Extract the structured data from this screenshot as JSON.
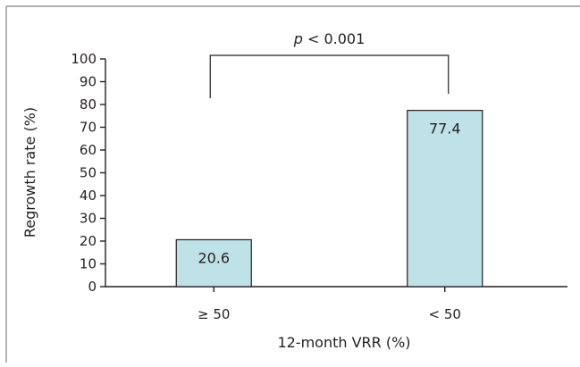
{
  "chart_data": {
    "type": "bar",
    "categories": [
      "≥ 50",
      "< 50"
    ],
    "values": [
      20.6,
      77.4
    ],
    "data_labels": [
      "20.6",
      "77.4"
    ],
    "xlabel": "12-month VRR (%)",
    "ylabel": "Regrowth rate (%)",
    "ylim": [
      0,
      100
    ],
    "yticks": [
      "0",
      "10",
      "20",
      "30",
      "40",
      "50",
      "60",
      "70",
      "80",
      "90",
      "100"
    ],
    "bar_color": "#bfe1e8",
    "bar_edge_color": "#231f20",
    "grid": false,
    "annotation": {
      "p_symbol": "p",
      "p_rest": " < 0.001",
      "between": [
        0,
        1
      ]
    }
  }
}
